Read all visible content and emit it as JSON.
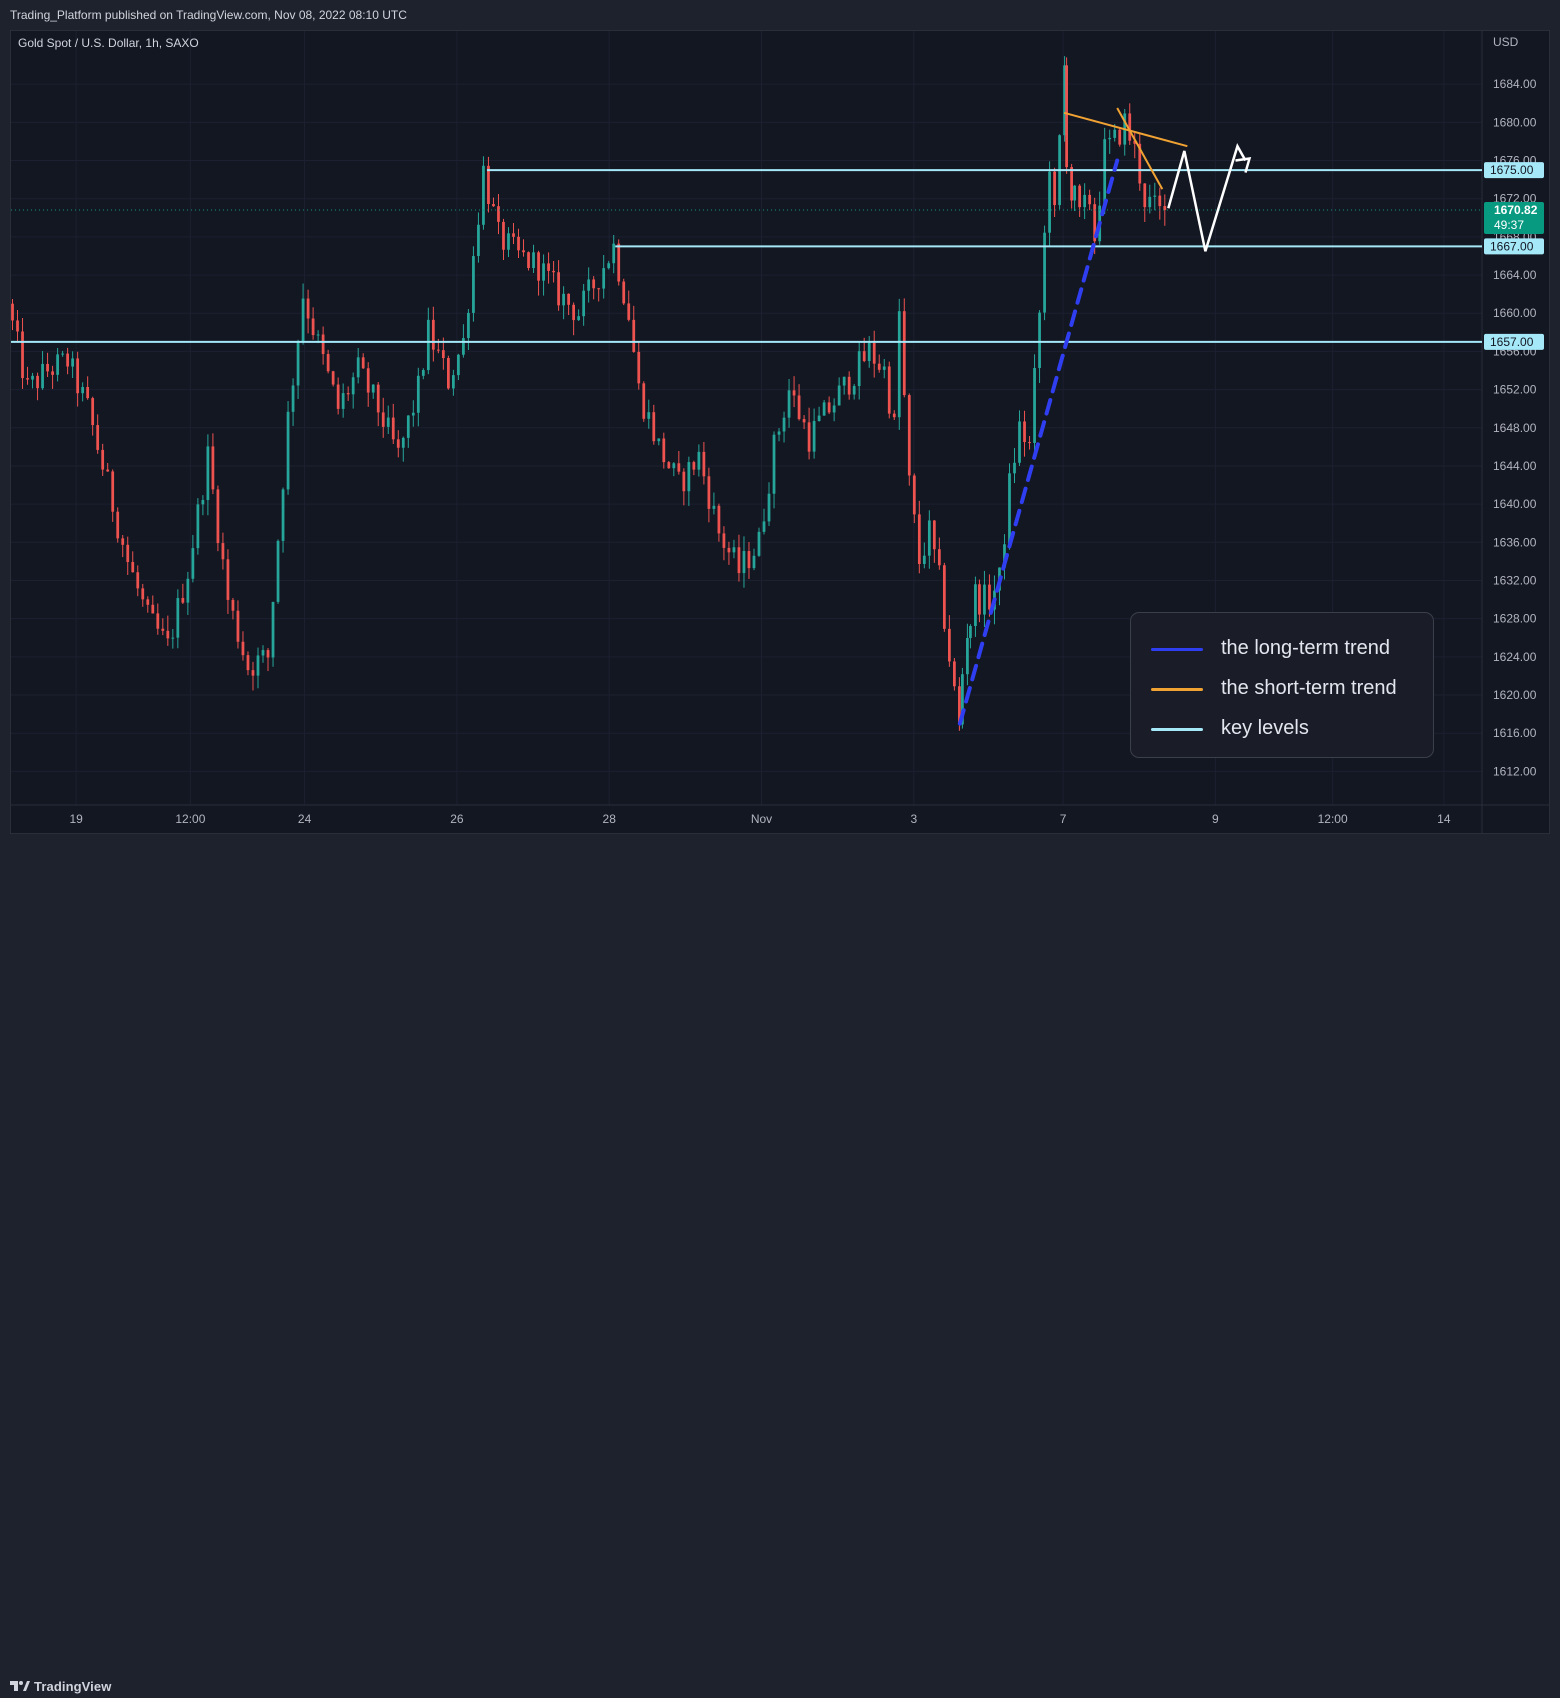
{
  "header": {
    "publish_note": "Trading_Platform published on TradingView.com, Nov 08, 2022 08:10 UTC"
  },
  "symbol": {
    "title": "Gold Spot / U.S. Dollar, 1h, SAXO",
    "currency": "USD"
  },
  "footer": {
    "brand": "TradingView",
    "logo_icon": "tradingview-logo-icon"
  },
  "colors": {
    "background": "#131722",
    "up": "#26a69a",
    "down": "#ef5350",
    "key_level": "#a5e9f9",
    "long_term": "#2f3ef0",
    "short_term": "#f0a233",
    "projection": "#ffffff",
    "price_badge": "#089981"
  },
  "legend": {
    "items": [
      {
        "label": "the long-term trend",
        "color": "#2f3ef0"
      },
      {
        "label": "the short-term trend",
        "color": "#f0a233"
      },
      {
        "label": "key levels",
        "color": "#a5e9f9"
      }
    ]
  },
  "price_badge": {
    "price": "1670.82",
    "countdown": "49:37"
  },
  "chart_data": {
    "type": "candlestick",
    "title": "Gold Spot / U.S. Dollar, 1h, SAXO",
    "ylabel": "USD",
    "ylim": [
      1609,
      1688
    ],
    "y_ticks": [
      1612,
      1616,
      1620,
      1624,
      1628,
      1632,
      1636,
      1640,
      1644,
      1648,
      1652,
      1656,
      1660,
      1664,
      1668,
      1672,
      1676,
      1680,
      1684
    ],
    "y_tick_labels": [
      "1612.00",
      "1616.00",
      "1620.00",
      "1624.00",
      "1628.00",
      "1632.00",
      "1636.00",
      "1640.00",
      "1644.00",
      "1648.00",
      "1652.00",
      "1656.00",
      "1660.00",
      "1664.00",
      "1668.00",
      "1672.00",
      "1676.00",
      "1680.00",
      "1684.00"
    ],
    "x_labels": [
      {
        "label": "19",
        "t": 6.6
      },
      {
        "label": "12:00",
        "t": 18.0
      },
      {
        "label": "24",
        "t": 29.4
      },
      {
        "label": "26",
        "t": 44.6
      },
      {
        "label": "28",
        "t": 59.8
      },
      {
        "label": "Nov",
        "t": 75.0
      },
      {
        "label": "3",
        "t": 90.2
      },
      {
        "label": "7",
        "t": 105.1
      },
      {
        "label": "9",
        "t": 120.3
      },
      {
        "label": "12:00",
        "t": 132.0
      },
      {
        "label": "14",
        "t": 143.1
      }
    ],
    "key_levels": [
      {
        "price": 1675,
        "label": "1675.00",
        "from_t": 47.6
      },
      {
        "price": 1667,
        "label": "1667.00",
        "from_t": 60.4
      },
      {
        "price": 1657,
        "label": "1657.00",
        "from_t": 0
      }
    ],
    "last_price": 1670.82,
    "anchors": [
      [
        0,
        1661
      ],
      [
        2,
        1652
      ],
      [
        4,
        1654
      ],
      [
        6,
        1655
      ],
      [
        8,
        1650
      ],
      [
        10,
        1642
      ],
      [
        12,
        1634
      ],
      [
        14,
        1628
      ],
      [
        16,
        1625
      ],
      [
        18,
        1633
      ],
      [
        20,
        1645
      ],
      [
        22,
        1630
      ],
      [
        24,
        1623
      ],
      [
        26,
        1624
      ],
      [
        28,
        1649
      ],
      [
        29.5,
        1662
      ],
      [
        31.5,
        1655
      ],
      [
        33,
        1650
      ],
      [
        35,
        1654
      ],
      [
        37,
        1650
      ],
      [
        39,
        1645
      ],
      [
        41,
        1652
      ],
      [
        42,
        1658
      ],
      [
        44,
        1653
      ],
      [
        45.5,
        1657
      ],
      [
        47.5,
        1675
      ],
      [
        49,
        1668
      ],
      [
        51,
        1666
      ],
      [
        53,
        1665
      ],
      [
        55,
        1662
      ],
      [
        57,
        1660
      ],
      [
        59,
        1664
      ],
      [
        60.5,
        1667
      ],
      [
        62,
        1660
      ],
      [
        63,
        1652
      ],
      [
        65,
        1646
      ],
      [
        67,
        1642
      ],
      [
        69,
        1645
      ],
      [
        71,
        1637
      ],
      [
        73,
        1633
      ],
      [
        75,
        1636
      ],
      [
        76.5,
        1646
      ],
      [
        78,
        1652
      ],
      [
        80,
        1647
      ],
      [
        82,
        1650
      ],
      [
        84,
        1653
      ],
      [
        86,
        1656
      ],
      [
        87.5,
        1654
      ],
      [
        88.5,
        1648
      ],
      [
        89,
        1660
      ],
      [
        90,
        1642
      ],
      [
        91,
        1634
      ],
      [
        92,
        1637
      ],
      [
        93,
        1632
      ],
      [
        94,
        1624
      ],
      [
        94.8,
        1618
      ],
      [
        95.6,
        1625
      ],
      [
        96.5,
        1630
      ],
      [
        98,
        1630
      ],
      [
        99,
        1632
      ],
      [
        100,
        1642
      ],
      [
        101,
        1648
      ],
      [
        102,
        1646
      ],
      [
        103,
        1660
      ],
      [
        104,
        1676
      ],
      [
        104.5,
        1670
      ],
      [
        105.2,
        1681
      ],
      [
        106,
        1674
      ],
      [
        107,
        1670
      ],
      [
        108,
        1672
      ],
      [
        108.5,
        1668
      ],
      [
        109.5,
        1677
      ],
      [
        110.5,
        1678
      ],
      [
        111.5,
        1680
      ],
      [
        112.5,
        1677
      ],
      [
        113.5,
        1672
      ],
      [
        114.5,
        1671
      ],
      [
        115.5,
        1670
      ]
    ],
    "overlays": {
      "long_term_trend": {
        "style": "dashed",
        "from": [
          94.8,
          1617
        ],
        "to": [
          110.5,
          1676
        ]
      },
      "short_term_trend_upper": {
        "from": [
          105.2,
          1681
        ],
        "to": [
          117.5,
          1677.5
        ]
      },
      "short_term_trend_lower": {
        "from": [
          110.5,
          1681.5
        ],
        "to": [
          115,
          1673
        ]
      },
      "projection_path": [
        [
          115.6,
          1671
        ],
        [
          117.2,
          1677
        ],
        [
          119.3,
          1666.5
        ],
        [
          122.5,
          1677.5
        ],
        [
          123.3,
          1676
        ]
      ]
    }
  }
}
